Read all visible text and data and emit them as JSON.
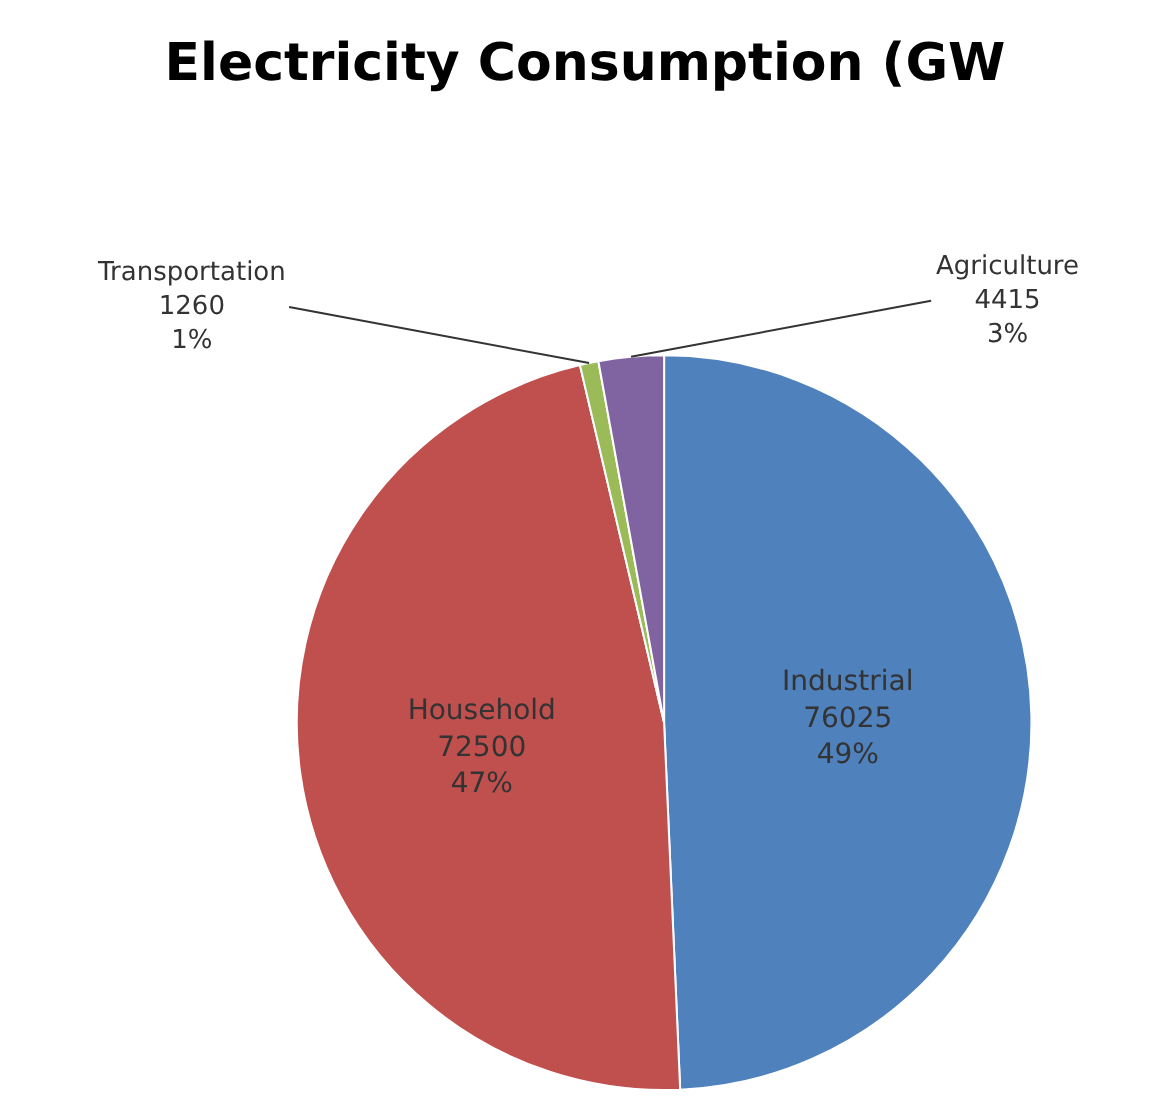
{
  "chart_data": {
    "type": "pie",
    "title": "Electricity Consumption (GW",
    "categories": [
      "Industrial",
      "Household",
      "Transportation",
      "Agriculture"
    ],
    "values": [
      76025,
      72500,
      1260,
      4415
    ],
    "value_labels": [
      "76025\n49%",
      "72500\n47%",
      "1260\n1%",
      "4415\n3%"
    ],
    "colors": [
      "#4f81bd",
      "#c0504d",
      "#9bbb59",
      "#8064a2"
    ],
    "legend": false
  }
}
